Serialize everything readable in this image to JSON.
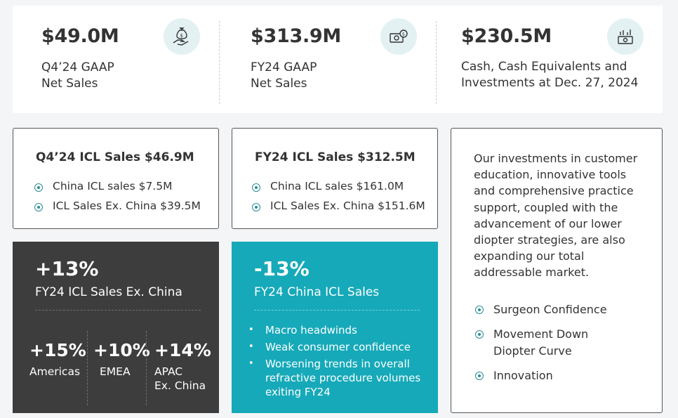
{
  "metrics": [
    {
      "value": "$49.0M",
      "label_line1": "Q4’24 GAAP",
      "label_line2": "Net Sales",
      "icon": "hand-money-bag-icon"
    },
    {
      "value": "$313.9M",
      "label_line1": "FY24 GAAP",
      "label_line2": "Net Sales",
      "icon": "cash-coin-icon"
    },
    {
      "value": "$230.5M",
      "label_line1": "Cash, Cash Equivalents and",
      "label_line2": "Investments at Dec. 27, 2024",
      "icon": "cash-growth-icon"
    }
  ],
  "q4_icl": {
    "title": "Q4’24 ICL Sales $46.9M",
    "items": [
      "China ICL sales $7.5M",
      "ICL Sales Ex. China $39.5M"
    ]
  },
  "fy24_icl": {
    "title": "FY24 ICL Sales $312.5M",
    "items": [
      "China ICL sales $161.0M",
      "ICL Sales Ex. China $151.6M"
    ]
  },
  "ex_china": {
    "pct": "+13%",
    "label": "FY24 ICL Sales Ex. China",
    "regions": [
      {
        "pct": "+15%",
        "name_line1": "Americas",
        "name_line2": ""
      },
      {
        "pct": "+10%",
        "name_line1": "EMEA",
        "name_line2": ""
      },
      {
        "pct": "+14%",
        "name_line1": "APAC",
        "name_line2": "Ex. China"
      }
    ]
  },
  "china": {
    "pct": "-13%",
    "label": "FY24 China ICL Sales",
    "bullets": [
      [
        "Macro headwinds"
      ],
      [
        "Weak consumer confidence"
      ],
      [
        "Worsening trends in overall",
        "refractive procedure volumes",
        "exiting FY24"
      ]
    ]
  },
  "investments": {
    "paragraph_lines": [
      "Our investments in customer",
      "education, innovative tools",
      "and comprehensive practice",
      "support, coupled with the",
      "advancement of our lower",
      "diopter strategies, are also",
      "expanding our total",
      "addressable market."
    ],
    "items": [
      [
        "Surgeon Confidence"
      ],
      [
        "Movement Down",
        "Diopter Curve"
      ],
      [
        "Innovation"
      ]
    ]
  },
  "colors": {
    "accent_teal": "#16a9b9",
    "dark_panel": "#3d3d3e",
    "icon_teal": "#2a8c95"
  }
}
